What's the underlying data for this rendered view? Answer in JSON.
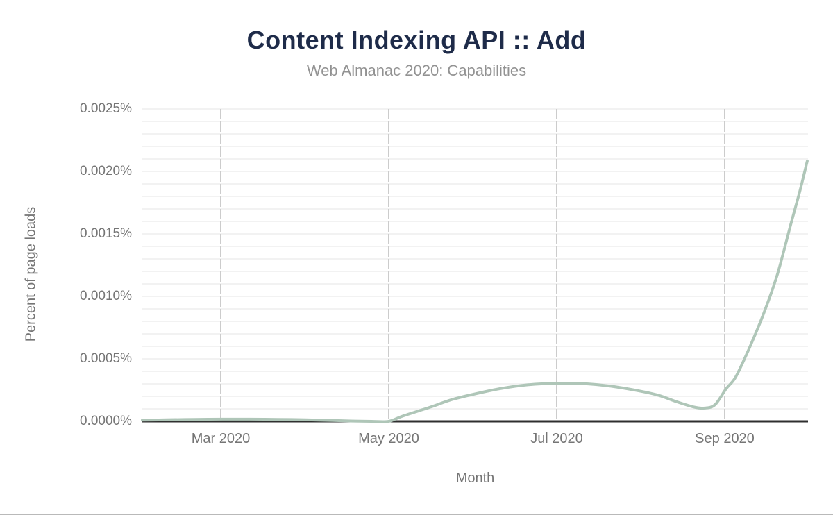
{
  "chart_data": {
    "type": "line",
    "title": "Content Indexing API :: Add",
    "subtitle": "Web Almanac 2020: Capabilities",
    "xlabel": "Month",
    "ylabel": "Percent of page loads",
    "ylim": [
      0,
      0.0025
    ],
    "y_unit": "%",
    "y_major_tick_step": 0.0005,
    "y_minor_grid_step": 0.0001,
    "x_domain_months": [
      "Feb 2020",
      "Oct 2020"
    ],
    "grid": {
      "horizontal_minor": true,
      "vertical_dashed_at_labeled_months": true,
      "legend": "none"
    },
    "y_ticks": [
      {
        "value": 0.0,
        "label": "0.0000%"
      },
      {
        "value": 0.0005,
        "label": "0.0005%"
      },
      {
        "value": 0.001,
        "label": "0.0010%"
      },
      {
        "value": 0.0015,
        "label": "0.0015%"
      },
      {
        "value": 0.002,
        "label": "0.0020%"
      },
      {
        "value": 0.0025,
        "label": "0.0025%"
      }
    ],
    "x_ticks": [
      {
        "month_index": 1,
        "label": "Mar 2020"
      },
      {
        "month_index": 3,
        "label": "May 2020"
      },
      {
        "month_index": 5,
        "label": "Jul 2020"
      },
      {
        "month_index": 7,
        "label": "Sep 2020"
      }
    ],
    "months": [
      "Feb 2020",
      "Mar 2020",
      "Apr 2020",
      "May 2020",
      "Jun 2020",
      "Jul 2020",
      "Aug 2020",
      "Sep 2020",
      "Oct 2020"
    ],
    "monthly_values_percent": [
      1e-05,
      1.7e-05,
      1.2e-05,
      0.0,
      0.00021,
      0.0003,
      0.00024,
      0.00026,
      0.00208
    ],
    "series": [
      {
        "name": "Content Indexing API :: Add",
        "color": "#afc6b8",
        "curve_samples_month_percent": [
          [
            0.066,
            9.4e-06
          ],
          [
            0.355,
            1.22e-05
          ],
          [
            0.686,
            1.56e-05
          ],
          [
            1.017,
            1.72e-05
          ],
          [
            1.347,
            1.72e-05
          ],
          [
            1.678,
            1.56e-05
          ],
          [
            2.008,
            1.22e-05
          ],
          [
            2.339,
            6.7e-06
          ],
          [
            2.587,
            2.2e-06
          ],
          [
            2.793,
            0.0
          ],
          [
            3.0,
            0.0
          ],
          [
            3.165,
            4.17e-05
          ],
          [
            3.496,
            0.000114
          ],
          [
            3.744,
            0.000172
          ],
          [
            3.992,
            0.000214
          ],
          [
            4.322,
            0.000261
          ],
          [
            4.653,
            0.000292
          ],
          [
            4.983,
            0.000304
          ],
          [
            5.314,
            0.000302
          ],
          [
            5.645,
            0.000281
          ],
          [
            5.975,
            0.000244
          ],
          [
            6.223,
            0.000206
          ],
          [
            6.43,
            0.000156
          ],
          [
            6.636,
            0.000114
          ],
          [
            6.76,
            0.000106
          ],
          [
            6.884,
            0.000133
          ],
          [
            7.017,
            0.000261
          ],
          [
            7.132,
            0.000356
          ],
          [
            7.298,
            0.000594
          ],
          [
            7.463,
            0.000861
          ],
          [
            7.628,
            0.001178
          ],
          [
            7.793,
            0.001594
          ],
          [
            7.893,
            0.001839
          ],
          [
            7.983,
            0.002083
          ]
        ]
      }
    ],
    "colors": {
      "line": "#afc6b8",
      "title": "#1e2b49",
      "subtitle": "#929292",
      "tick_labels": "#757575",
      "grid_horizontal": "#f2f2f2",
      "grid_vertical": "#cccccc",
      "axis_line": "#2f2f2f"
    }
  }
}
